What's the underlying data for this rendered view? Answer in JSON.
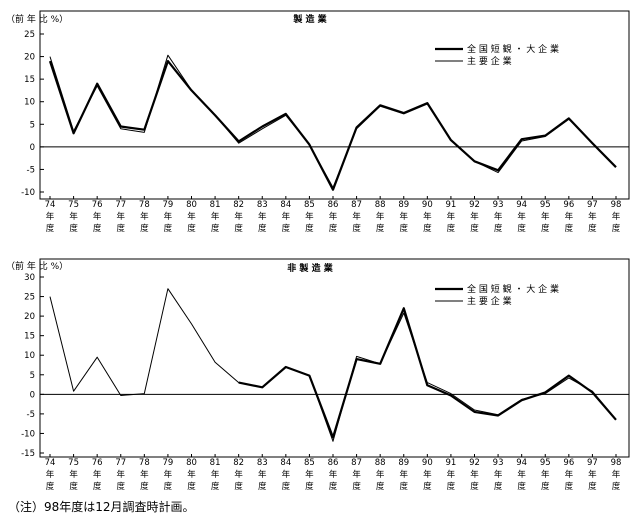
{
  "chart_data": [
    {
      "type": "line",
      "title": "製 造 業",
      "ylabel": "（前 年 比 %）",
      "ylim": [
        -10,
        25
      ],
      "yticks": [
        -10,
        -5,
        0,
        5,
        10,
        15,
        20,
        25
      ],
      "categories": [
        "74",
        "75",
        "76",
        "77",
        "78",
        "79",
        "80",
        "81",
        "82",
        "83",
        "84",
        "85",
        "86",
        "87",
        "88",
        "89",
        "90",
        "91",
        "92",
        "93",
        "94",
        "95",
        "96",
        "97",
        "98"
      ],
      "x_suffix": [
        "年",
        "度"
      ],
      "legend_position": "top-right",
      "series": [
        {
          "name": "全 国 短 観 ・ 大 企 業",
          "style": "thick",
          "values": [
            19,
            3,
            14,
            4.5,
            3.8,
            19,
            12.5,
            7,
            1.2,
            4.5,
            7.3,
            0.5,
            -9.5,
            4.3,
            9.2,
            7.5,
            9.7,
            1.5,
            -3.2,
            -5.2,
            1.7,
            2.5,
            6.3,
            0.8,
            -4.5
          ]
        },
        {
          "name": "主 要 企 業",
          "style": "thin",
          "values": [
            20,
            3.5,
            13.5,
            4,
            3.2,
            20.3,
            12.6,
            7,
            0.8,
            4,
            7,
            0.5,
            -9,
            4,
            9,
            7.3,
            9.5,
            1.5,
            -3.2,
            -5.7,
            1.3,
            2.3,
            6.1,
            0.9,
            -4.4
          ]
        }
      ]
    },
    {
      "type": "line",
      "title": "非 製 造 業",
      "ylabel": "（前 年 比 %）",
      "ylim": [
        -15,
        30
      ],
      "yticks": [
        -15,
        -10,
        -5,
        0,
        5,
        10,
        15,
        20,
        25,
        30
      ],
      "categories": [
        "74",
        "75",
        "76",
        "77",
        "78",
        "79",
        "80",
        "81",
        "82",
        "83",
        "84",
        "85",
        "86",
        "87",
        "88",
        "89",
        "90",
        "91",
        "92",
        "93",
        "94",
        "95",
        "96",
        "97",
        "98"
      ],
      "x_suffix": [
        "年",
        "度"
      ],
      "legend_position": "top-right",
      "series": [
        {
          "name": "全 国 短 観 ・ 大 企 業",
          "style": "thick",
          "values": [
            null,
            null,
            null,
            null,
            null,
            null,
            null,
            null,
            3,
            1.8,
            7,
            4.8,
            -11,
            9,
            7.8,
            22,
            2.3,
            -0.3,
            -4.5,
            -5.4,
            -1.5,
            0.5,
            4.8,
            0.5,
            -6.5
          ]
        },
        {
          "name": "主 要 企 業",
          "style": "thin",
          "values": [
            25,
            0.8,
            9.5,
            -0.3,
            0.2,
            27,
            18,
            8.2,
            3,
            1.8,
            7,
            4.8,
            -12,
            9.7,
            7.8,
            20.8,
            3,
            0.2,
            -4,
            -5.2,
            -1.3,
            0.2,
            4.2,
            0.8,
            -6.4
          ]
        }
      ]
    }
  ],
  "footnote": "（注）98年度は12月調査時計画。"
}
